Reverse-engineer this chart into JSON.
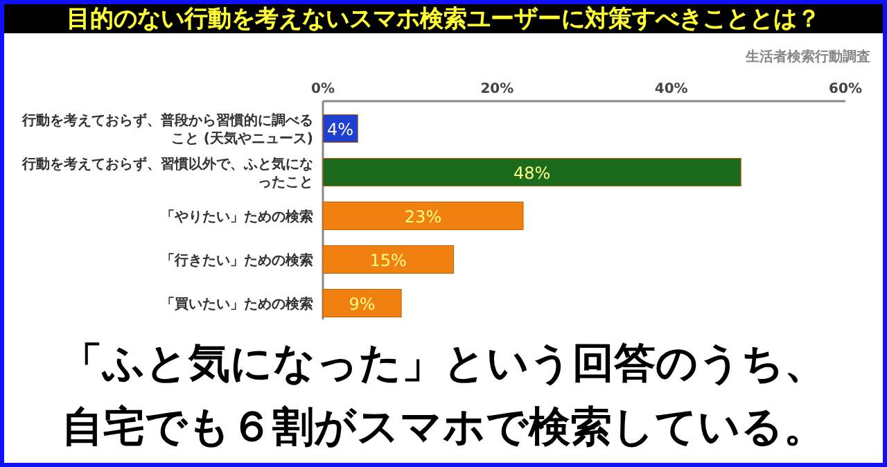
{
  "chart_data": {
    "type": "bar",
    "orientation": "horizontal",
    "title": "目的のない行動を考えないスマホ検索ユーザーに対策すべきこととは？",
    "categories": [
      "行動を考えておらず、普段から習慣的に調べること (天気やニュース)",
      "行動を考えておらず、習慣以外で、ふと気になったこと",
      "「やりたい」ための検索",
      "「行きたい」ための検索",
      "「買いたい」ための検索"
    ],
    "values": [
      4,
      48,
      23,
      15,
      9
    ],
    "colors": [
      "#1f3fd0",
      "#1c6a1c",
      "#f08010",
      "#f08010",
      "#f08010"
    ],
    "value_labels": [
      "4%",
      "48%",
      "23%",
      "15%",
      "9%"
    ],
    "xlim": [
      0,
      60
    ],
    "xticks": [
      {
        "value": 0,
        "label": "0%"
      },
      {
        "value": 20,
        "label": "20%"
      },
      {
        "value": 40,
        "label": "40%"
      },
      {
        "value": 60,
        "label": "60%"
      }
    ],
    "annotations": [
      "生活者検索行動調査",
      "「ふと気になった」という回答のうち、",
      "自宅でも６割がスマホで検索している。"
    ]
  }
}
